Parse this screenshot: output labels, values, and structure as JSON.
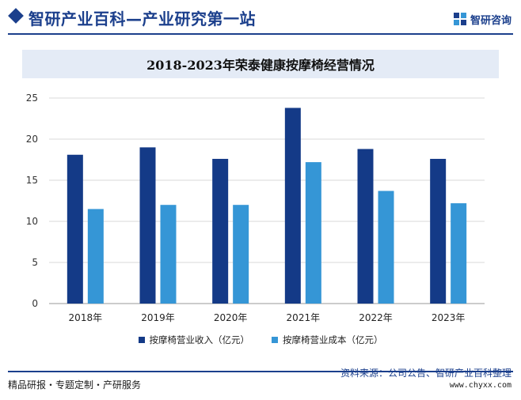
{
  "header": {
    "title": "智研产业百科—产业研究第一站",
    "logo_text": "智研咨询"
  },
  "chart_data": {
    "type": "bar",
    "title": "2018-2023年荣泰健康按摩椅经营情况",
    "categories": [
      "2018年",
      "2019年",
      "2020年",
      "2021年",
      "2022年",
      "2023年"
    ],
    "series": [
      {
        "name": "按摩椅营业收入（亿元）",
        "color": "#143a87",
        "values": [
          18.1,
          19.0,
          17.6,
          23.8,
          18.8,
          17.6
        ]
      },
      {
        "name": "按摩椅营业成本（亿元）",
        "color": "#3596d6",
        "values": [
          11.5,
          12.0,
          12.0,
          17.2,
          13.7,
          12.2
        ]
      }
    ],
    "ylim": [
      0,
      25
    ],
    "yticks": [
      0,
      5,
      10,
      15,
      20,
      25
    ],
    "grid": true,
    "legend": "bottom"
  },
  "footer": {
    "left": "精品研报・专题定制・产研服务",
    "source": "资料来源：公司公告、智研产业百科整理",
    "url": "www.chyxx.com"
  }
}
